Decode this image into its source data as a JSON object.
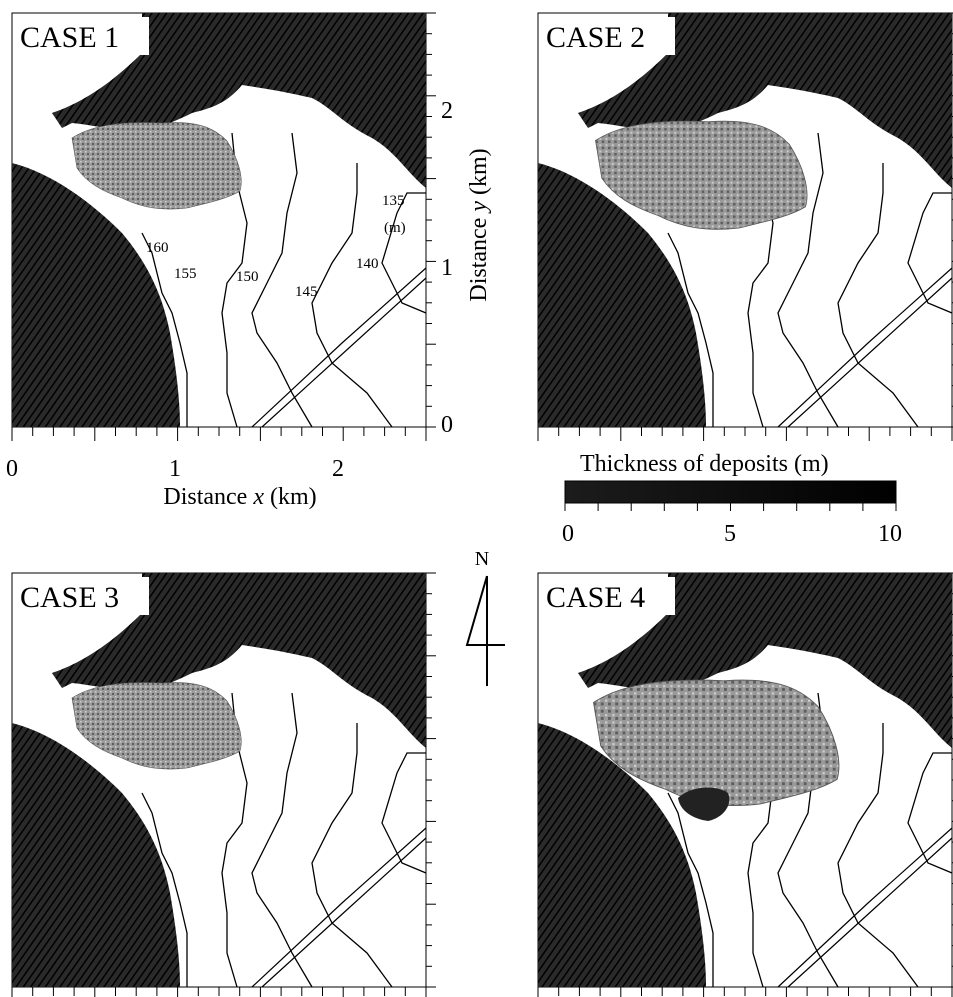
{
  "panels": [
    {
      "id": "case1",
      "label": "CASE 1",
      "deposit_extent": "small"
    },
    {
      "id": "case2",
      "label": "CASE 2",
      "deposit_extent": "medium"
    },
    {
      "id": "case3",
      "label": "CASE 3",
      "deposit_extent": "small"
    },
    {
      "id": "case4",
      "label": "CASE 4",
      "deposit_extent": "large"
    }
  ],
  "x_axis": {
    "title_prefix": "Distance ",
    "title_var": "x",
    "title_suffix": " (km)",
    "ticks": [
      "0",
      "1",
      "2"
    ]
  },
  "y_axis": {
    "title_prefix": "Distance ",
    "title_var": "y",
    "title_suffix": " (km)",
    "ticks": [
      "0",
      "1",
      "2"
    ]
  },
  "contour_labels": [
    "160",
    "155",
    "150",
    "145",
    "140",
    "135",
    "(m)"
  ],
  "colorbar": {
    "title": "Thickness of deposits   (m)",
    "ticks": [
      "0",
      "5",
      "10"
    ]
  },
  "north_arrow": {
    "label": "N"
  },
  "colors": {
    "terrain": "#1a1a1a",
    "deposit": "#8a8a8a",
    "line": "#000000",
    "background": "#ffffff"
  }
}
